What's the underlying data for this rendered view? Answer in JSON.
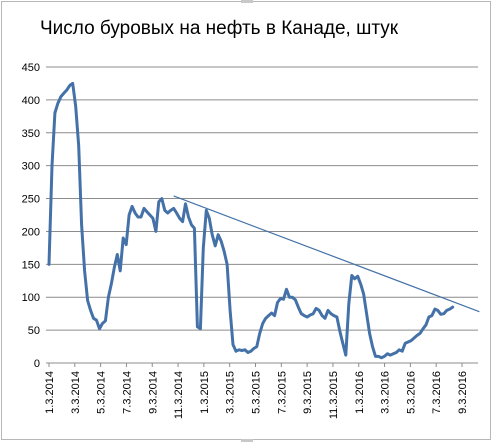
{
  "chart_data": {
    "type": "line",
    "title": "Число буровых на нефть в Канаде, штук",
    "xlabel": "",
    "ylabel": "",
    "ylim": [
      0,
      450
    ],
    "y_ticks": [
      "0",
      "50",
      "100",
      "150",
      "200",
      "250",
      "300",
      "350",
      "400",
      "450"
    ],
    "x_tick_labels": [
      "1.3.2014",
      "3.3.2014",
      "5.3.2014",
      "7.3.2014",
      "9.3.2014",
      "11.3.2014",
      "1.3.2015",
      "3.3.2015",
      "5.3.2015",
      "7.3.2015",
      "9.3.2015",
      "11.3.2015",
      "1.3.2016",
      "3.3.2016",
      "5.3.2016",
      "7.3.2016",
      "9.3.2016"
    ],
    "grid": true,
    "legend": "none",
    "series": [
      {
        "color": "#4472a8",
        "x_start": "2014-01-03",
        "x_step_weeks": 1,
        "values": [
          150,
          300,
          380,
          395,
          405,
          410,
          415,
          422,
          425,
          390,
          330,
          210,
          140,
          95,
          80,
          68,
          65,
          52,
          60,
          64,
          100,
          120,
          145,
          165,
          140,
          190,
          180,
          225,
          238,
          228,
          222,
          222,
          235,
          230,
          225,
          220,
          200,
          245,
          250,
          232,
          228,
          232,
          235,
          228,
          220,
          215,
          242,
          222,
          210,
          205,
          55,
          52,
          175,
          232,
          220,
          195,
          178,
          195,
          185,
          170,
          150,
          80,
          28,
          18,
          20,
          19,
          20,
          16,
          18,
          22,
          25,
          45,
          60,
          68,
          72,
          76,
          72,
          92,
          98,
          97,
          112,
          100,
          100,
          96,
          85,
          75,
          72,
          70,
          73,
          75,
          83,
          80,
          72,
          68,
          80,
          75,
          72,
          70,
          48,
          30,
          12,
          90,
          133,
          128,
          132,
          120,
          105,
          75,
          45,
          25,
          10,
          10,
          8,
          10,
          14,
          12,
          14,
          16,
          20,
          18,
          30,
          32,
          34,
          38,
          42,
          45,
          52,
          58,
          70,
          72,
          82,
          80,
          74,
          75,
          80,
          82,
          85
        ]
      }
    ],
    "trendline": {
      "color": "#4472a8",
      "from": [
        "2014-10-24",
        254
      ],
      "to": [
        "2016-10-14",
        78
      ]
    }
  }
}
